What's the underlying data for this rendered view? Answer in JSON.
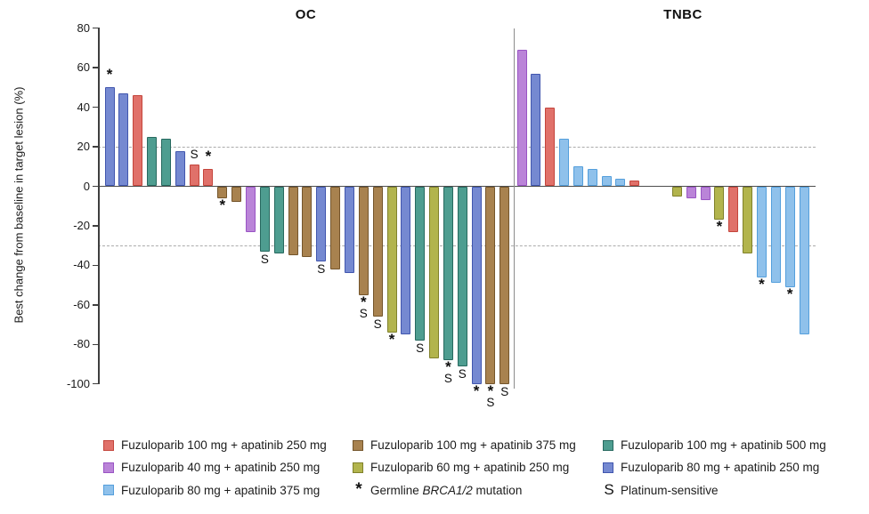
{
  "chart_data": {
    "type": "bar",
    "subtype": "waterfall",
    "title": "",
    "ylabel": "Best change from baseline in target lesion (%)",
    "xlabel": "",
    "ylim": [
      -100,
      80
    ],
    "yticks": [
      80,
      60,
      40,
      20,
      0,
      -20,
      -40,
      -60,
      -80,
      -100
    ],
    "reference_lines": [
      20,
      -30
    ],
    "grid": false,
    "legend_position": "bottom",
    "markers": {
      "star": "*",
      "platinum": "S"
    },
    "groups": [
      {
        "name": "OC",
        "bars": [
          {
            "arm": "fz80_ap250",
            "value": 50,
            "flags": "*"
          },
          {
            "arm": "fz80_ap250",
            "value": 47,
            "flags": ""
          },
          {
            "arm": "fz100_ap250",
            "value": 46,
            "flags": ""
          },
          {
            "arm": "fz100_ap500",
            "value": 25,
            "flags": ""
          },
          {
            "arm": "fz100_ap500",
            "value": 24,
            "flags": ""
          },
          {
            "arm": "fz80_ap250",
            "value": 18,
            "flags": ""
          },
          {
            "arm": "fz100_ap250",
            "value": 11,
            "flags": "S"
          },
          {
            "arm": "fz100_ap250",
            "value": 9,
            "flags": "*"
          },
          {
            "arm": "fz100_ap375",
            "value": -6,
            "flags": "*"
          },
          {
            "arm": "fz100_ap375",
            "value": -8,
            "flags": ""
          },
          {
            "arm": "fz40_ap250",
            "value": -23,
            "flags": ""
          },
          {
            "arm": "fz100_ap500",
            "value": -33,
            "flags": "S"
          },
          {
            "arm": "fz100_ap500",
            "value": -34,
            "flags": ""
          },
          {
            "arm": "fz100_ap375",
            "value": -35,
            "flags": ""
          },
          {
            "arm": "fz100_ap375",
            "value": -36,
            "flags": ""
          },
          {
            "arm": "fz80_ap250",
            "value": -38,
            "flags": "S"
          },
          {
            "arm": "fz100_ap375",
            "value": -42,
            "flags": ""
          },
          {
            "arm": "fz80_ap250",
            "value": -44,
            "flags": ""
          },
          {
            "arm": "fz100_ap375",
            "value": -55,
            "flags": "*S"
          },
          {
            "arm": "fz100_ap375",
            "value": -66,
            "flags": "S"
          },
          {
            "arm": "fz60_ap250",
            "value": -74,
            "flags": "*"
          },
          {
            "arm": "fz80_ap250",
            "value": -75,
            "flags": ""
          },
          {
            "arm": "fz100_ap500",
            "value": -78,
            "flags": "S"
          },
          {
            "arm": "fz60_ap250",
            "value": -87,
            "flags": ""
          },
          {
            "arm": "fz100_ap500",
            "value": -88,
            "flags": "*S"
          },
          {
            "arm": "fz100_ap500",
            "value": -91,
            "flags": "S"
          },
          {
            "arm": "fz80_ap250",
            "value": -100,
            "flags": "*"
          },
          {
            "arm": "fz100_ap375",
            "value": -100,
            "flags": "*S"
          },
          {
            "arm": "fz100_ap375",
            "value": -100,
            "flags": "S"
          }
        ]
      },
      {
        "name": "TNBC",
        "bars": [
          {
            "arm": "fz40_ap250",
            "value": 69,
            "flags": ""
          },
          {
            "arm": "fz80_ap250",
            "value": 57,
            "flags": ""
          },
          {
            "arm": "fz100_ap250",
            "value": 40,
            "flags": ""
          },
          {
            "arm": "fz80_ap375",
            "value": 24,
            "flags": ""
          },
          {
            "arm": "fz80_ap375",
            "value": 10,
            "flags": ""
          },
          {
            "arm": "fz80_ap375",
            "value": 9,
            "flags": ""
          },
          {
            "arm": "fz80_ap375",
            "value": 5,
            "flags": ""
          },
          {
            "arm": "fz80_ap375",
            "value": 4,
            "flags": ""
          },
          {
            "arm": "fz100_ap250",
            "value": 3,
            "flags": ""
          },
          {
            "arm": null,
            "value": 0,
            "flags": ""
          },
          {
            "arm": null,
            "value": 0,
            "flags": ""
          },
          {
            "arm": "fz60_ap250",
            "value": -5,
            "flags": ""
          },
          {
            "arm": "fz40_ap250",
            "value": -6,
            "flags": ""
          },
          {
            "arm": "fz40_ap250",
            "value": -7,
            "flags": ""
          },
          {
            "arm": "fz60_ap250",
            "value": -17,
            "flags": "*"
          },
          {
            "arm": "fz100_ap250",
            "value": -23,
            "flags": ""
          },
          {
            "arm": "fz60_ap250",
            "value": -34,
            "flags": ""
          },
          {
            "arm": "fz80_ap375",
            "value": -46,
            "flags": "*"
          },
          {
            "arm": "fz80_ap375",
            "value": -49,
            "flags": ""
          },
          {
            "arm": "fz80_ap375",
            "value": -51,
            "flags": "*"
          },
          {
            "arm": "fz80_ap375",
            "value": -75,
            "flags": ""
          }
        ]
      }
    ]
  },
  "arms": {
    "fz100_ap250": {
      "label": "Fuzuloparib 100 mg + apatinib 250 mg",
      "fill": "#E0716A",
      "border": "#C4453C"
    },
    "fz100_ap375": {
      "label": "Fuzuloparib 100 mg + apatinib 375 mg",
      "fill": "#A8824F",
      "border": "#74552B"
    },
    "fz100_ap500": {
      "label": "Fuzuloparib 100 mg + apatinib 500 mg",
      "fill": "#4E9D90",
      "border": "#27695F"
    },
    "fz40_ap250": {
      "label": "Fuzuloparib 40 mg + apatinib 250 mg",
      "fill": "#BA84D8",
      "border": "#9954C4"
    },
    "fz60_ap250": {
      "label": "Fuzuloparib 60 mg + apatinib 250 mg",
      "fill": "#B2B44D",
      "border": "#80812B"
    },
    "fz80_ap250": {
      "label": "Fuzuloparib 80 mg + apatinib 250 mg",
      "fill": "#7589D1",
      "border": "#4156AE"
    },
    "fz80_ap375": {
      "label": "Fuzuloparib 80 mg + apatinib 375 mg",
      "fill": "#8FC1EB",
      "border": "#549FDC"
    }
  },
  "legend": {
    "columns": [
      [
        {
          "swatch": "fz100_ap250",
          "label": "Fuzuloparib 100 mg + apatinib 250 mg"
        },
        {
          "swatch": "fz40_ap250",
          "label": "Fuzuloparib 40 mg + apatinib 250 mg"
        },
        {
          "swatch": "fz80_ap375",
          "label": "Fuzuloparib 80 mg + apatinib 375 mg"
        }
      ],
      [
        {
          "swatch": "fz100_ap375",
          "label": "Fuzuloparib 100 mg + apatinib 375 mg"
        },
        {
          "swatch": "fz60_ap250",
          "label": "Fuzuloparib 60 mg + apatinib 250 mg"
        },
        {
          "symbol": "*",
          "label_prefix": "Germline ",
          "label_italic": "BRCA1/2",
          "label_suffix": " mutation"
        }
      ],
      [
        {
          "swatch": "fz100_ap500",
          "label": "Fuzuloparib 100 mg + apatinib 500 mg"
        },
        {
          "swatch": "fz80_ap250",
          "label": "Fuzuloparib 80 mg + apatinib 250 mg"
        },
        {
          "symbol": "S",
          "label": "Platinum-sensitive"
        }
      ]
    ]
  }
}
